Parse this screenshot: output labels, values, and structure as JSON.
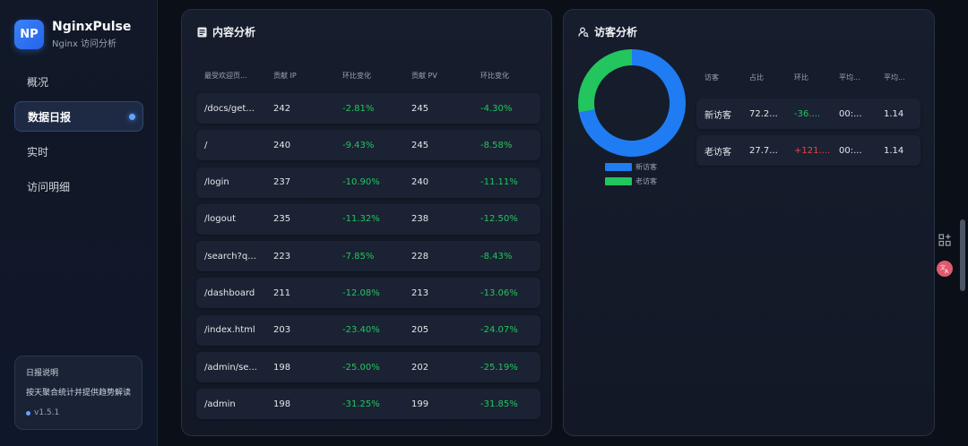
{
  "brand": {
    "logo": "NP",
    "title": "NginxPulse",
    "subtitle": "Nginx 访问分析"
  },
  "nav": [
    {
      "label": "概况",
      "active": false
    },
    {
      "label": "数据日报",
      "active": true
    },
    {
      "label": "实时",
      "active": false
    },
    {
      "label": "访问明细",
      "active": false
    }
  ],
  "info": {
    "title": "日报说明",
    "desc": "按天聚合统计并提供趋势解读",
    "version": "v1.5.1"
  },
  "content": {
    "title": "内容分析",
    "headers": [
      "最受欢迎页...",
      "贡献 IP",
      "环比变化",
      "贡献 PV",
      "环比变化"
    ],
    "rows": [
      {
        "page": "/docs/get...",
        "ip": "242",
        "ip_change": "-2.81%",
        "pv": "245",
        "pv_change": "-4.30%"
      },
      {
        "page": "/",
        "ip": "240",
        "ip_change": "-9.43%",
        "pv": "245",
        "pv_change": "-8.58%"
      },
      {
        "page": "/login",
        "ip": "237",
        "ip_change": "-10.90%",
        "pv": "240",
        "pv_change": "-11.11%"
      },
      {
        "page": "/logout",
        "ip": "235",
        "ip_change": "-11.32%",
        "pv": "238",
        "pv_change": "-12.50%"
      },
      {
        "page": "/search?q...",
        "ip": "223",
        "ip_change": "-7.85%",
        "pv": "228",
        "pv_change": "-8.43%"
      },
      {
        "page": "/dashboard",
        "ip": "211",
        "ip_change": "-12.08%",
        "pv": "213",
        "pv_change": "-13.06%"
      },
      {
        "page": "/index.html",
        "ip": "203",
        "ip_change": "-23.40%",
        "pv": "205",
        "pv_change": "-24.07%"
      },
      {
        "page": "/admin/se...",
        "ip": "198",
        "ip_change": "-25.00%",
        "pv": "202",
        "pv_change": "-25.19%"
      },
      {
        "page": "/admin",
        "ip": "198",
        "ip_change": "-31.25%",
        "pv": "199",
        "pv_change": "-31.85%"
      }
    ]
  },
  "visitors": {
    "title": "访客分析",
    "headers": [
      "访客",
      "占比",
      "环比",
      "平均...",
      "平均..."
    ],
    "rows": [
      {
        "type": "新访客",
        "share": "72.2...",
        "change": "-36....",
        "change_dir": "down",
        "avg1": "00:...",
        "avg2": "1.14"
      },
      {
        "type": "老访客",
        "share": "27.7...",
        "change": "+121....",
        "change_dir": "up",
        "avg1": "00:...",
        "avg2": "1.14"
      }
    ],
    "legend": [
      {
        "name": "新访客",
        "color": "#1f7cf2"
      },
      {
        "name": "老访客",
        "color": "#22c55e"
      }
    ]
  },
  "chart_data": {
    "type": "pie",
    "categories": [
      "新访客",
      "老访客"
    ],
    "values": [
      72.2,
      27.8
    ],
    "colors": [
      "#1f7cf2",
      "#22c55e"
    ],
    "donut": true,
    "legend_position": "bottom"
  },
  "icons": {
    "content": "document-icon",
    "visitors": "user-search-icon",
    "apps": "apps-add-icon",
    "translate": "translate-icon"
  }
}
